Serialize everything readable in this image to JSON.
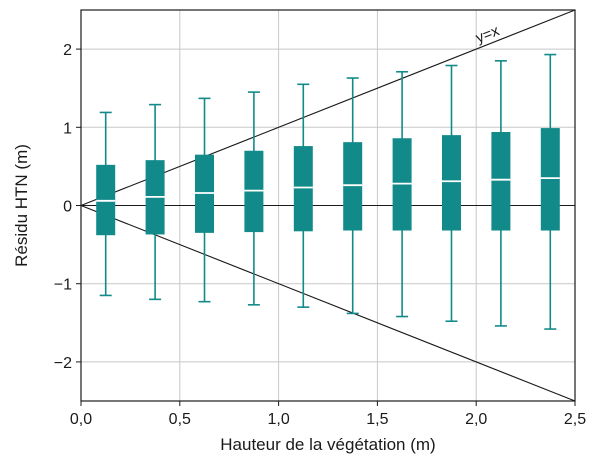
{
  "chart_data": {
    "type": "box",
    "xlabel": "Hauteur de la végétation (m)",
    "ylabel": "Résidu HTN (m)",
    "xlim": [
      0,
      2.5
    ],
    "ylim": [
      -2.5,
      2.5
    ],
    "x_ticks": [
      0,
      0.5,
      1.0,
      1.5,
      2.0,
      2.5
    ],
    "x_tick_labels": [
      "0,0",
      "0,5",
      "1,0",
      "1,5",
      "2,0",
      "2,5"
    ],
    "y_ticks": [
      -2,
      -1,
      0,
      1,
      2
    ],
    "y_tick_labels": [
      "−2",
      "−1",
      "0",
      "1",
      "2"
    ],
    "grid": true,
    "box_color": "#138a8a",
    "median_color": "#ffffff",
    "reference_lines": [
      {
        "label": "y=x",
        "slope": 1,
        "intercept": 0
      },
      {
        "label": "",
        "slope": -1,
        "intercept": 0
      },
      {
        "label": "",
        "slope": 0,
        "intercept": 0
      }
    ],
    "boxes": [
      {
        "x": 0.125,
        "whisker_low": -1.15,
        "q1": -0.38,
        "median": 0.06,
        "q3": 0.52,
        "whisker_high": 1.19
      },
      {
        "x": 0.375,
        "whisker_low": -1.2,
        "q1": -0.37,
        "median": 0.11,
        "q3": 0.58,
        "whisker_high": 1.29
      },
      {
        "x": 0.625,
        "whisker_low": -1.23,
        "q1": -0.35,
        "median": 0.16,
        "q3": 0.65,
        "whisker_high": 1.37
      },
      {
        "x": 0.875,
        "whisker_low": -1.27,
        "q1": -0.34,
        "median": 0.19,
        "q3": 0.7,
        "whisker_high": 1.45
      },
      {
        "x": 1.125,
        "whisker_low": -1.3,
        "q1": -0.33,
        "median": 0.23,
        "q3": 0.76,
        "whisker_high": 1.55
      },
      {
        "x": 1.375,
        "whisker_low": -1.38,
        "q1": -0.32,
        "median": 0.26,
        "q3": 0.81,
        "whisker_high": 1.63
      },
      {
        "x": 1.625,
        "whisker_low": -1.42,
        "q1": -0.32,
        "median": 0.28,
        "q3": 0.86,
        "whisker_high": 1.71
      },
      {
        "x": 1.875,
        "whisker_low": -1.48,
        "q1": -0.32,
        "median": 0.31,
        "q3": 0.9,
        "whisker_high": 1.79
      },
      {
        "x": 2.125,
        "whisker_low": -1.54,
        "q1": -0.32,
        "median": 0.33,
        "q3": 0.94,
        "whisker_high": 1.85
      },
      {
        "x": 2.375,
        "whisker_low": -1.58,
        "q1": -0.32,
        "median": 0.35,
        "q3": 0.99,
        "whisker_high": 1.93
      }
    ]
  }
}
